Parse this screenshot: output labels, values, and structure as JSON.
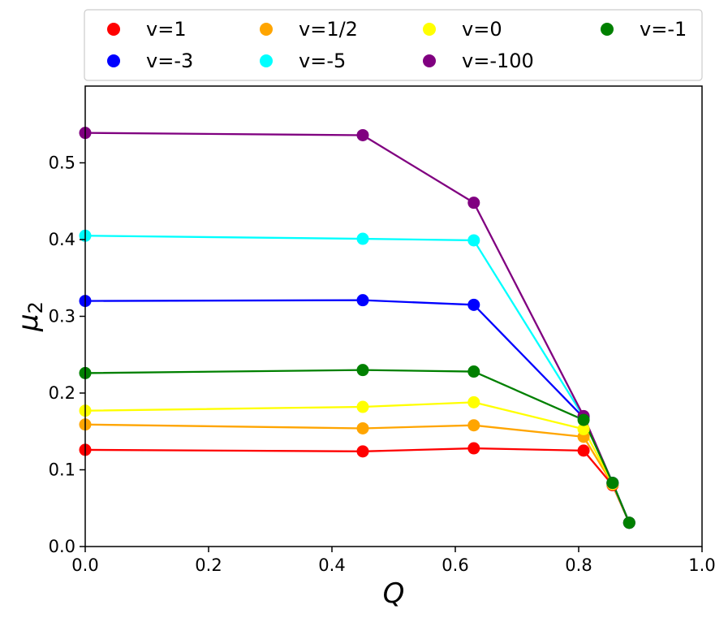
{
  "chart_data": {
    "type": "line",
    "xlabel": "Q",
    "ylabel": "μ",
    "ylabel_sub": "2",
    "xlim": [
      0.0,
      1.0
    ],
    "ylim": [
      0.0,
      0.6
    ],
    "xticks": [
      "0.0",
      "0.2",
      "0.4",
      "0.6",
      "0.8",
      "1.0"
    ],
    "yticks": [
      "0.0",
      "0.1",
      "0.2",
      "0.3",
      "0.4",
      "0.5"
    ],
    "grid": false,
    "legend_placement": "top, outside plot, 4 columns",
    "series": [
      {
        "name": "v=1",
        "color": "#ff0000",
        "x": [
          0.0,
          0.45,
          0.63,
          0.808,
          0.855,
          0.882
        ],
        "y": [
          0.126,
          0.124,
          0.128,
          0.125,
          0.08,
          0.031
        ]
      },
      {
        "name": "v=1/2",
        "color": "#ffa500",
        "x": [
          0.0,
          0.45,
          0.63,
          0.808,
          0.855,
          0.882
        ],
        "y": [
          0.159,
          0.154,
          0.158,
          0.143,
          0.081,
          0.031
        ]
      },
      {
        "name": "v=0",
        "color": "#ffff00",
        "x": [
          0.0,
          0.45,
          0.63,
          0.808,
          0.855,
          0.882
        ],
        "y": [
          0.177,
          0.182,
          0.188,
          0.153,
          0.082,
          0.031
        ]
      },
      {
        "name": "v=-1",
        "color": "#008000",
        "x": [
          0.0,
          0.45,
          0.63,
          0.808,
          0.855,
          0.882
        ],
        "y": [
          0.226,
          0.23,
          0.228,
          0.165,
          0.083,
          0.031
        ]
      },
      {
        "name": "v=-3",
        "color": "#0000ff",
        "x": [
          0.0,
          0.45,
          0.63,
          0.808,
          0.855,
          0.882
        ],
        "y": [
          0.32,
          0.321,
          0.315,
          0.168,
          0.083,
          0.031
        ]
      },
      {
        "name": "v=-5",
        "color": "#00ffff",
        "x": [
          0.0,
          0.45,
          0.63,
          0.808,
          0.855,
          0.882
        ],
        "y": [
          0.405,
          0.401,
          0.399,
          0.169,
          0.083,
          0.031
        ]
      },
      {
        "name": "v=-100",
        "color": "#800080",
        "x": [
          0.0,
          0.45,
          0.63,
          0.808,
          0.855,
          0.882
        ],
        "y": [
          0.539,
          0.536,
          0.448,
          0.17,
          0.083,
          0.031
        ]
      }
    ],
    "legend_order": [
      "v=1",
      "v=1/2",
      "v=0",
      "v=-1",
      "v=-3",
      "v=-5",
      "v=-100"
    ],
    "draw_order": [
      "v=1",
      "v=1/2",
      "v=0",
      "v=-3",
      "v=-5",
      "v=-100",
      "v=-1"
    ]
  }
}
